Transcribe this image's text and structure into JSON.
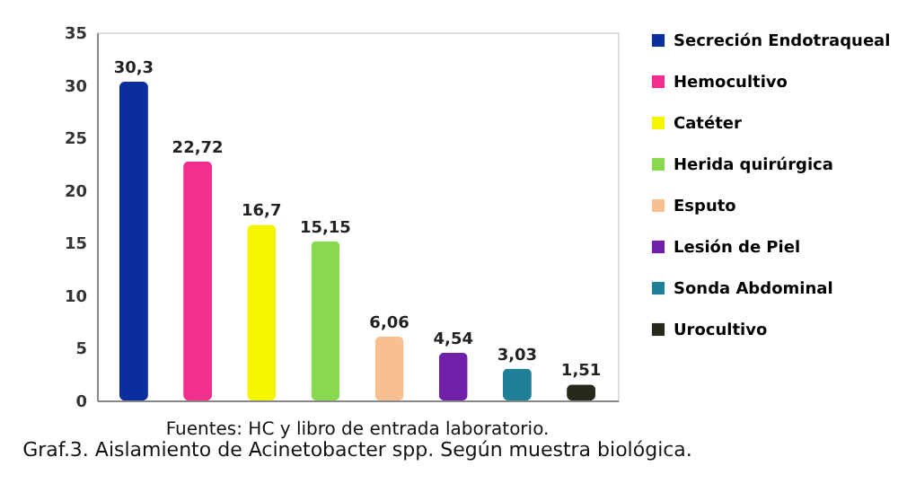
{
  "chart_data": {
    "type": "bar",
    "categories": [
      null,
      null,
      null,
      null,
      null,
      null,
      null,
      null
    ],
    "series": [
      {
        "name": "Secreción Endotraqueal",
        "color": "#0a2e9e",
        "values": [
          30.3,
          null,
          null,
          null,
          null,
          null,
          null,
          null
        ],
        "value_labels": [
          "30,3",
          null,
          null,
          null,
          null,
          null,
          null,
          null
        ]
      },
      {
        "name": "Hemocultivo",
        "color": "#f0308c",
        "values": [
          null,
          22.72,
          null,
          null,
          null,
          null,
          null,
          null
        ],
        "value_labels": [
          null,
          "22,72",
          null,
          null,
          null,
          null,
          null,
          null
        ]
      },
      {
        "name": "Catéter",
        "color": "#f5f500",
        "values": [
          null,
          null,
          16.7,
          null,
          null,
          null,
          null,
          null
        ],
        "value_labels": [
          null,
          null,
          "16,7",
          null,
          null,
          null,
          null,
          null
        ]
      },
      {
        "name": "Herida quirúrgica",
        "color": "#88d850",
        "values": [
          null,
          null,
          null,
          15.15,
          null,
          null,
          null,
          null
        ],
        "value_labels": [
          null,
          null,
          null,
          "15,15",
          null,
          null,
          null,
          null
        ]
      },
      {
        "name": "Esputo",
        "color": "#f8c090",
        "values": [
          null,
          null,
          null,
          null,
          6.06,
          null,
          null,
          null
        ],
        "value_labels": [
          null,
          null,
          null,
          null,
          "6,06",
          null,
          null,
          null
        ]
      },
      {
        "name": "Lesión de Piel",
        "color": "#7020a8",
        "values": [
          null,
          null,
          null,
          null,
          null,
          4.54,
          null,
          null
        ],
        "value_labels": [
          null,
          null,
          null,
          null,
          null,
          "4,54",
          null,
          null
        ]
      },
      {
        "name": "Sonda Abdominal",
        "color": "#208098",
        "values": [
          null,
          null,
          null,
          null,
          null,
          null,
          3.03,
          null
        ],
        "value_labels": [
          null,
          null,
          null,
          null,
          null,
          null,
          "3,03",
          null
        ]
      },
      {
        "name": "Urocultivo",
        "color": "#28281c",
        "values": [
          null,
          null,
          null,
          null,
          null,
          null,
          null,
          1.51
        ],
        "value_labels": [
          null,
          null,
          null,
          null,
          null,
          null,
          null,
          "1,51"
        ]
      }
    ],
    "ylim": [
      0,
      35
    ],
    "yticks": [
      0,
      5,
      10,
      15,
      20,
      25,
      30,
      35
    ],
    "grid": false,
    "legend": "right",
    "tick_labels": "y",
    "annotations": [
      "Fuentes: HC y libro de entrada laboratorio.",
      "Graf.3. Aislamiento de Acinetobacter spp. Según muestra biológica."
    ]
  }
}
